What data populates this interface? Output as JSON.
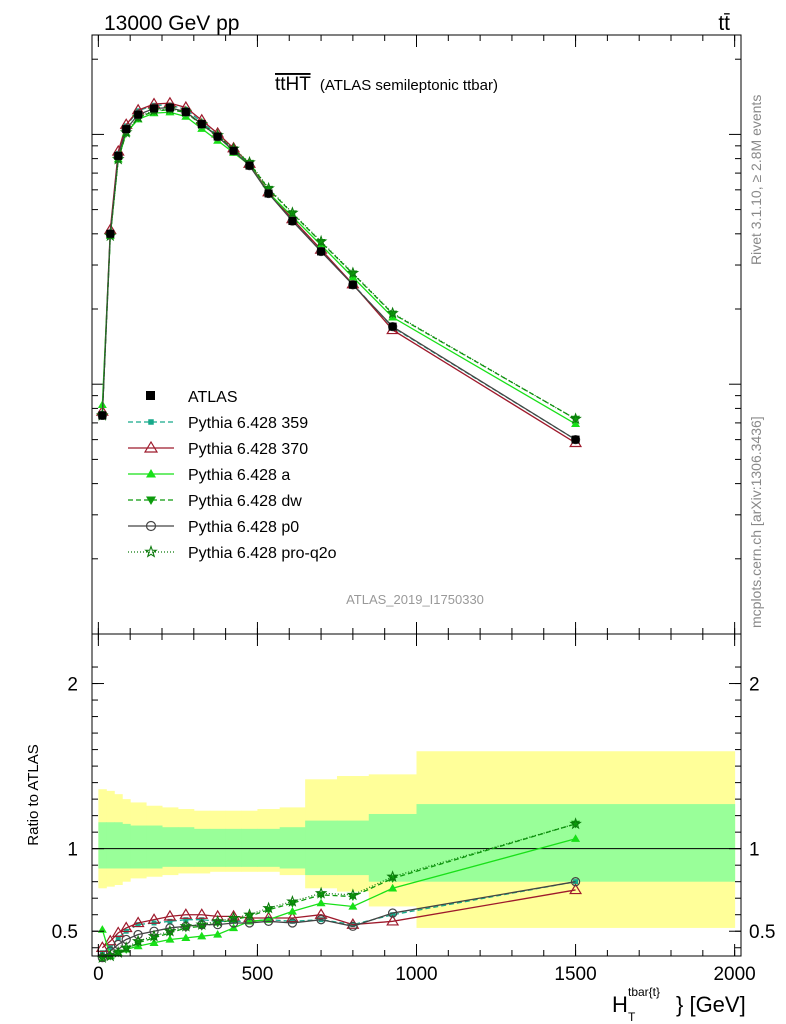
{
  "header": {
    "left": "13000 GeV pp",
    "right": "tt̄"
  },
  "side": {
    "rivet": "Rivet 3.1.10, ≥ 2.8M events",
    "mcplots": "mcplots.cern.ch [arXiv:1306.3436]"
  },
  "chart_data": {
    "type": "line",
    "title_main": "ttHT",
    "title_sub": "(ATLAS semileptonic ttbar)",
    "watermark": "ATLAS_2019_I1750330",
    "xlabel_main": "H",
    "xlabel_sub": "T",
    "xlabel_sup": "tbar{t}",
    "xlabel_tail": "} [GeV]",
    "ratio_ylabel": "Ratio to ATLAS",
    "xlim": [
      -20,
      2020
    ],
    "xticks": [
      0,
      500,
      1000,
      1500,
      2000
    ],
    "ratio_ylim": [
      0.35,
      2.3
    ],
    "ratio_yticks": [
      0.5,
      1,
      2
    ],
    "main_ylog": true,
    "main_ylim": [
      0.01,
      2.5
    ],
    "bin_edges": [
      0,
      25,
      50,
      75,
      100,
      150,
      200,
      250,
      300,
      350,
      400,
      450,
      500,
      570,
      650,
      750,
      850,
      1000,
      2000
    ],
    "x": [
      12.5,
      37.5,
      62.5,
      87.5,
      125,
      175,
      225,
      275,
      325,
      375,
      425,
      475,
      535,
      610,
      700,
      800,
      925,
      1500
    ],
    "atlas": [
      0.075,
      0.4,
      0.82,
      1.05,
      1.2,
      1.27,
      1.28,
      1.23,
      1.1,
      0.98,
      0.86,
      0.75,
      0.58,
      0.45,
      0.34,
      0.25,
      0.17,
      0.06
    ],
    "band_inner": [
      [
        0.88,
        1.16
      ],
      [
        0.88,
        1.16
      ],
      [
        0.88,
        1.16
      ],
      [
        0.88,
        1.15
      ],
      [
        0.88,
        1.14
      ],
      [
        0.88,
        1.14
      ],
      [
        0.89,
        1.13
      ],
      [
        0.89,
        1.13
      ],
      [
        0.89,
        1.12
      ],
      [
        0.89,
        1.12
      ],
      [
        0.89,
        1.12
      ],
      [
        0.89,
        1.12
      ],
      [
        0.89,
        1.12
      ],
      [
        0.88,
        1.13
      ],
      [
        0.84,
        1.17
      ],
      [
        0.84,
        1.17
      ],
      [
        0.8,
        1.21
      ],
      [
        0.8,
        1.27
      ]
    ],
    "band_outer": [
      [
        0.76,
        1.36
      ],
      [
        0.77,
        1.35
      ],
      [
        0.78,
        1.33
      ],
      [
        0.8,
        1.3
      ],
      [
        0.82,
        1.28
      ],
      [
        0.83,
        1.26
      ],
      [
        0.84,
        1.25
      ],
      [
        0.85,
        1.24
      ],
      [
        0.85,
        1.23
      ],
      [
        0.86,
        1.23
      ],
      [
        0.86,
        1.23
      ],
      [
        0.86,
        1.23
      ],
      [
        0.86,
        1.24
      ],
      [
        0.84,
        1.25
      ],
      [
        0.76,
        1.42
      ],
      [
        0.74,
        1.44
      ],
      [
        0.65,
        1.45
      ],
      [
        0.52,
        1.59
      ]
    ],
    "series": [
      {
        "name": "Pythia 6.428 359",
        "color": "#16a98a",
        "dash": "5,3",
        "marker": "square",
        "ratio": [
          0.37,
          0.4,
          0.46,
          0.5,
          0.54,
          0.55,
          0.56,
          0.57,
          0.57,
          0.56,
          0.56,
          0.56,
          0.57,
          0.56,
          0.57,
          0.54,
          0.6,
          0.8
        ]
      },
      {
        "name": "Pythia 6.428 370",
        "color": "#9e1a2c",
        "dash": "",
        "marker": "triangle-open",
        "ratio": [
          0.4,
          0.44,
          0.49,
          0.52,
          0.55,
          0.57,
          0.59,
          0.6,
          0.6,
          0.59,
          0.59,
          0.58,
          0.58,
          0.58,
          0.6,
          0.54,
          0.56,
          0.75
        ]
      },
      {
        "name": "Pythia 6.428 a",
        "color": "#18e018",
        "dash": "",
        "marker": "triangle",
        "ratio": [
          0.51,
          0.35,
          0.37,
          0.39,
          0.41,
          0.43,
          0.45,
          0.46,
          0.47,
          0.48,
          0.52,
          0.56,
          0.57,
          0.62,
          0.67,
          0.65,
          0.76,
          1.06
        ]
      },
      {
        "name": "Pythia 6.428 dw",
        "color": "#0c9b0c",
        "dash": "5,3",
        "marker": "triangle-down",
        "ratio": [
          0.34,
          0.35,
          0.37,
          0.39,
          0.43,
          0.46,
          0.49,
          0.52,
          0.53,
          0.55,
          0.57,
          0.59,
          0.63,
          0.67,
          0.72,
          0.71,
          0.82,
          1.15
        ]
      },
      {
        "name": "Pythia 6.428 p0",
        "color": "#444444",
        "dash": "",
        "marker": "circle-open",
        "ratio": [
          0.34,
          0.38,
          0.42,
          0.45,
          0.48,
          0.5,
          0.52,
          0.53,
          0.54,
          0.54,
          0.55,
          0.55,
          0.56,
          0.55,
          0.57,
          0.53,
          0.61,
          0.8
        ]
      },
      {
        "name": "Pythia 6.428 pro-q2o",
        "color": "#0c7a0c",
        "dash": "1,2",
        "marker": "star",
        "ratio": [
          0.34,
          0.35,
          0.37,
          0.4,
          0.44,
          0.47,
          0.5,
          0.53,
          0.54,
          0.56,
          0.58,
          0.6,
          0.64,
          0.68,
          0.73,
          0.72,
          0.83,
          1.15
        ]
      }
    ],
    "legend": {
      "data_label": "ATLAS",
      "placement": "middle-left"
    }
  }
}
